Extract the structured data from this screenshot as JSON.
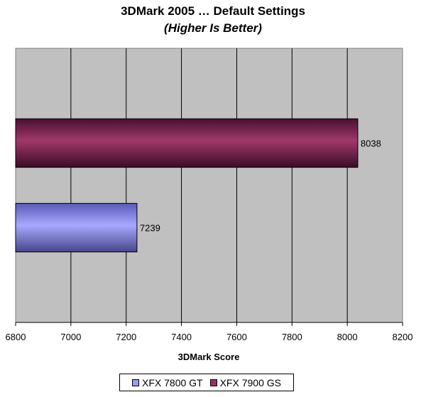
{
  "chart_data": {
    "type": "bar",
    "orientation": "horizontal",
    "title": "3DMark 2005 … Default Settings",
    "subtitle": "(Higher Is Better)",
    "xlabel": "3DMark Score",
    "ylabel": "",
    "xlim": [
      6800,
      8200
    ],
    "xticks": [
      6800,
      7000,
      7200,
      7400,
      7600,
      7800,
      8000,
      8200
    ],
    "grid": true,
    "legend_position": "bottom",
    "series": [
      {
        "name": "XFX 7800 GT",
        "value": 7239,
        "label": "7239",
        "color": "#9999ff"
      },
      {
        "name": "XFX 7900 GS",
        "value": 8038,
        "label": "8038",
        "color": "#993366"
      }
    ],
    "background_color": "#c0c0c0"
  }
}
